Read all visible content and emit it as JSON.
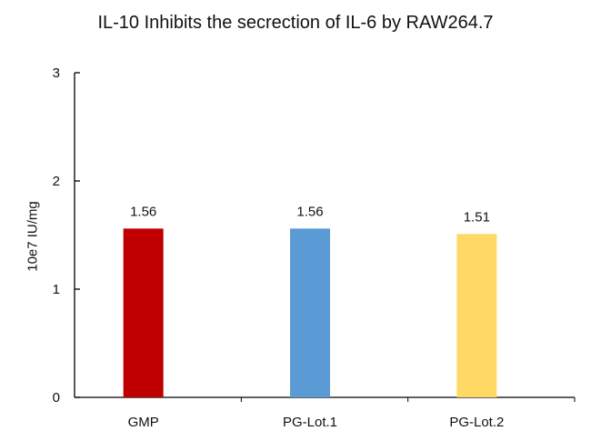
{
  "chart_data": {
    "type": "bar",
    "title": "IL-10 Inhibits the secrection of IL-6 by RAW264.7",
    "xlabel": "",
    "ylabel": "10e7 IU/mg",
    "ylim": [
      0,
      3
    ],
    "yticks": [
      0,
      1,
      2,
      3
    ],
    "categories": [
      "GMP",
      "PG-Lot.1",
      "PG-Lot.2"
    ],
    "values": [
      1.56,
      1.56,
      1.51
    ],
    "value_labels": [
      "1.56",
      "1.56",
      "1.51"
    ],
    "colors": [
      "#C00000",
      "#5B9BD5",
      "#FFD966"
    ],
    "grid": false,
    "legend": "none"
  }
}
